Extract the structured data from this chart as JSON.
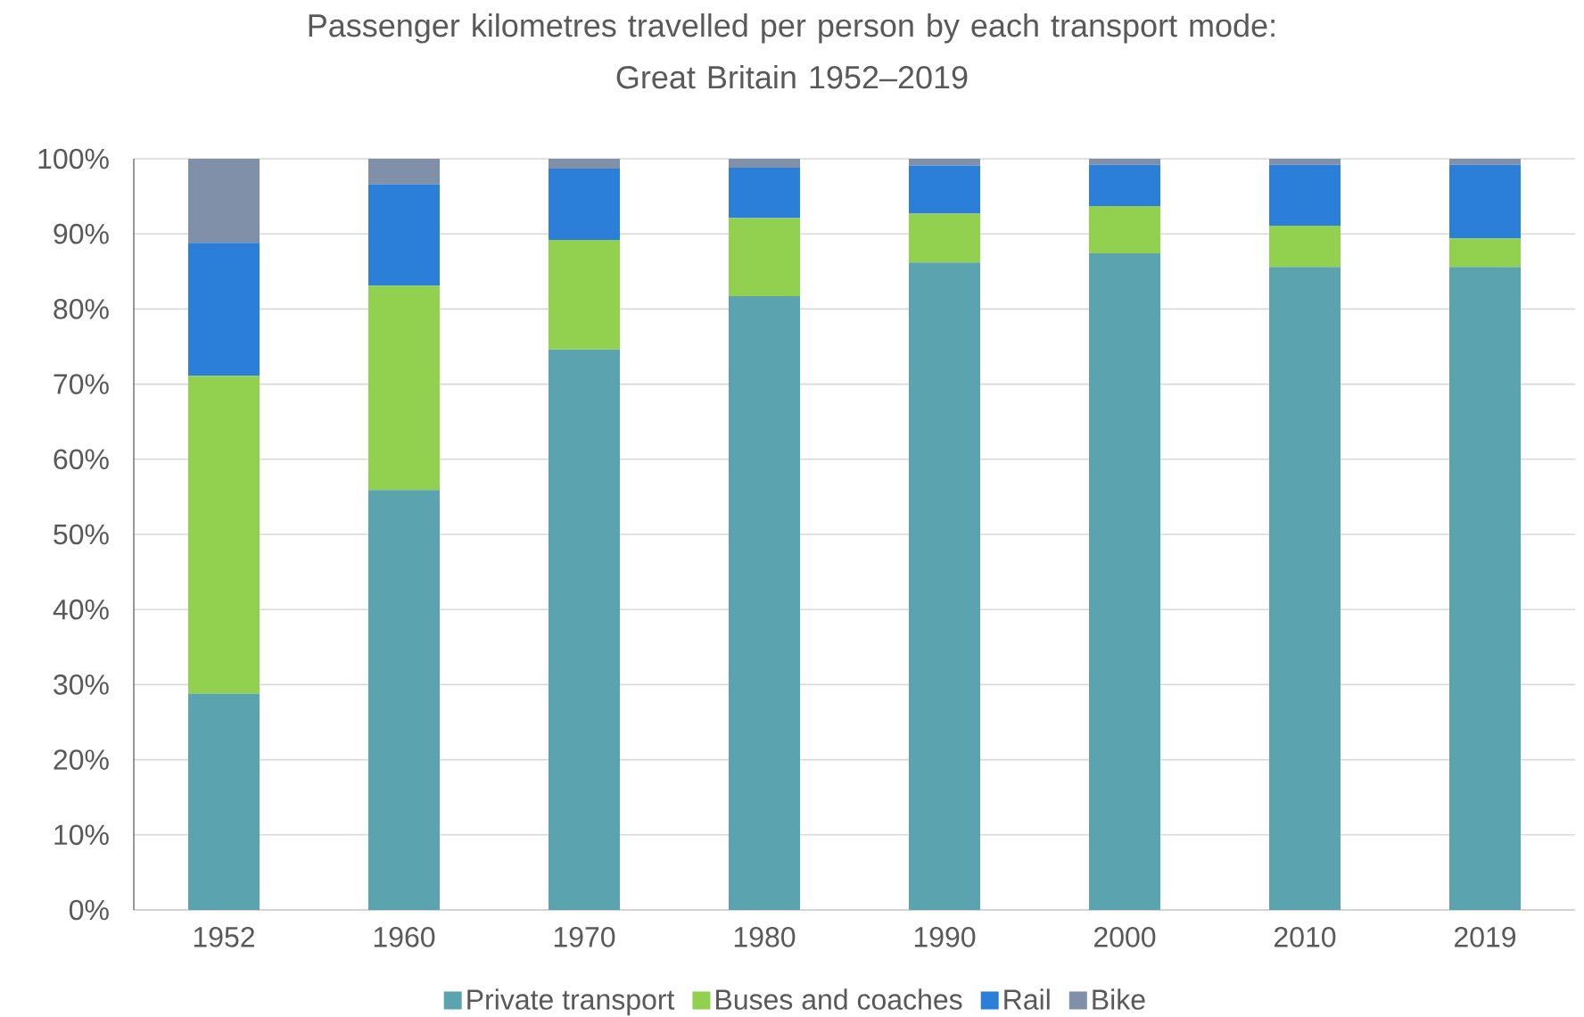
{
  "chart_data": {
    "type": "bar",
    "title": "Passenger kilometres travelled per person by each transport mode:\nGreat Britain 1952–2019",
    "categories": [
      "1952",
      "1960",
      "1970",
      "1980",
      "1990",
      "2000",
      "2010",
      "2019"
    ],
    "stacked": true,
    "grid": "y",
    "legend": "bottom",
    "ylim": [
      0,
      100
    ],
    "yticks": [
      {
        "value": 0,
        "label": "0%"
      },
      {
        "value": 10,
        "label": "10%"
      },
      {
        "value": 20,
        "label": "20%"
      },
      {
        "value": 30,
        "label": "30%"
      },
      {
        "value": 40,
        "label": "40%"
      },
      {
        "value": 50,
        "label": "50%"
      },
      {
        "value": 60,
        "label": "60%"
      },
      {
        "value": 70,
        "label": "70%"
      },
      {
        "value": 80,
        "label": "80%"
      },
      {
        "value": 90,
        "label": "90%"
      },
      {
        "value": 100,
        "label": "100%"
      }
    ],
    "series": [
      {
        "name": "Private transport",
        "color": "#5ba3ae",
        "values": [
          28.8,
          55.9,
          74.6,
          81.7,
          86.2,
          87.4,
          85.6,
          85.6
        ]
      },
      {
        "name": "Buses and coaches",
        "color": "#92d050",
        "values": [
          42.3,
          27.2,
          14.6,
          10.4,
          6.5,
          6.3,
          5.5,
          3.8
        ]
      },
      {
        "name": "Rail",
        "color": "#2b7fd9",
        "values": [
          17.7,
          13.5,
          9.5,
          6.7,
          6.4,
          5.5,
          8.1,
          9.8
        ]
      },
      {
        "name": "Bike",
        "color": "#8090a8",
        "values": [
          11.2,
          3.4,
          1.3,
          1.2,
          0.9,
          0.8,
          0.8,
          0.8
        ]
      }
    ]
  }
}
